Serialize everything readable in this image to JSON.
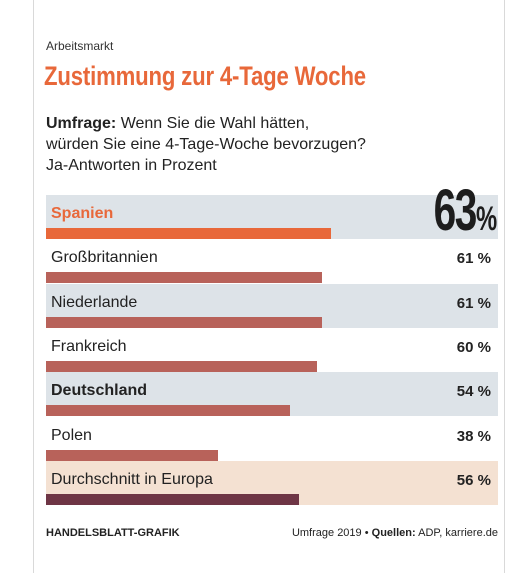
{
  "kicker": "Arbeitsmarkt",
  "title": "Zustimmung zur 4-Tage Woche",
  "question": {
    "bold": "Umfrage:",
    "line1": "Wenn Sie die Wahl hätten,",
    "line2": "würden Sie eine  4-Tage-Woche bevorzugen?",
    "line3": "Ja-Antworten in Prozent"
  },
  "highlight": {
    "value": "63",
    "unit": "%"
  },
  "colors": {
    "spain": "#e8683a",
    "bar": "#b8625a",
    "average_bar": "#6e3545",
    "band_grey": "#dde3e8",
    "band_average": "#f4e1d2"
  },
  "chart_data": {
    "type": "bar",
    "orientation": "horizontal",
    "xlim": [
      0,
      100
    ],
    "categories": [
      "Spanien",
      "Großbritannien",
      "Niederlande",
      "Frankreich",
      "Deutschland",
      "Polen",
      "Durchschnitt in Europa"
    ],
    "values": [
      63,
      61,
      61,
      60,
      54,
      38,
      56
    ],
    "value_labels": [
      "63%",
      "61 %",
      "61 %",
      "60 %",
      "54 %",
      "38 %",
      "56 %"
    ]
  },
  "footer": {
    "credit": "HANDELSBLATT-GRAFIK",
    "survey": "Umfrage 2019",
    "sources_label": "Quellen:",
    "sources": "ADP, karriere.de"
  }
}
